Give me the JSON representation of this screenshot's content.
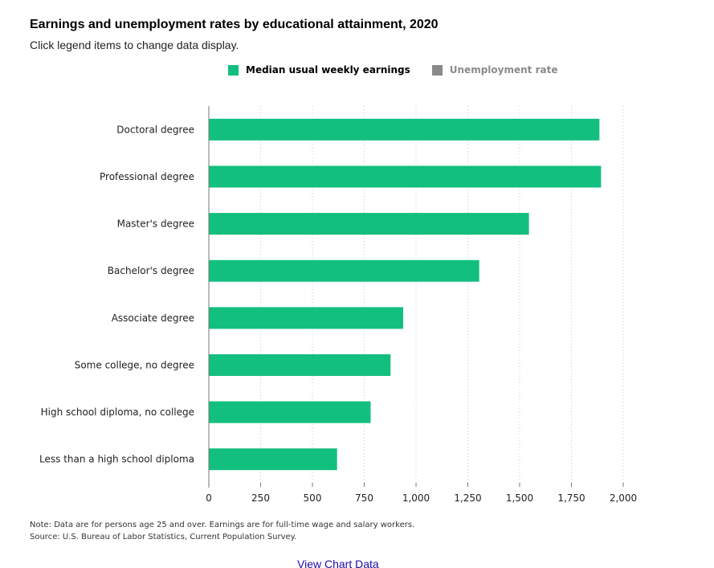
{
  "header": {
    "title": "Earnings and unemployment rates by educational attainment, 2020",
    "subtitle": "Click legend items to change data display."
  },
  "legend": {
    "items": [
      {
        "label": "Median usual weekly earnings",
        "color": "#12bf7f",
        "active": true
      },
      {
        "label": "Unemployment rate",
        "color": "#8a8a8a",
        "active": false
      }
    ]
  },
  "chart_data": {
    "type": "bar",
    "orientation": "horizontal",
    "categories": [
      "Doctoral degree",
      "Professional degree",
      "Master's degree",
      "Bachelor's degree",
      "Associate degree",
      "Some college, no degree",
      "High school diploma, no college",
      "Less than a high school diploma"
    ],
    "series": [
      {
        "name": "Median usual weekly earnings",
        "color": "#12bf7f",
        "values": [
          1885,
          1893,
          1545,
          1305,
          938,
          877,
          781,
          619
        ]
      }
    ],
    "xlim": [
      0,
      2000
    ],
    "xticks": [
      0,
      250,
      500,
      750,
      1000,
      1250,
      1500,
      1750,
      2000
    ],
    "xtick_labels": [
      "0",
      "250",
      "500",
      "750",
      "1,000",
      "1,250",
      "1,500",
      "1,750",
      "2,000"
    ],
    "grid": "vertical-dotted"
  },
  "footer": {
    "note": "Note: Data are for persons age 25 and over. Earnings are for full-time wage and salary workers.",
    "source": "Source: U.S. Bureau of Labor Statistics, Current Population Survey.",
    "link": "View Chart Data"
  }
}
